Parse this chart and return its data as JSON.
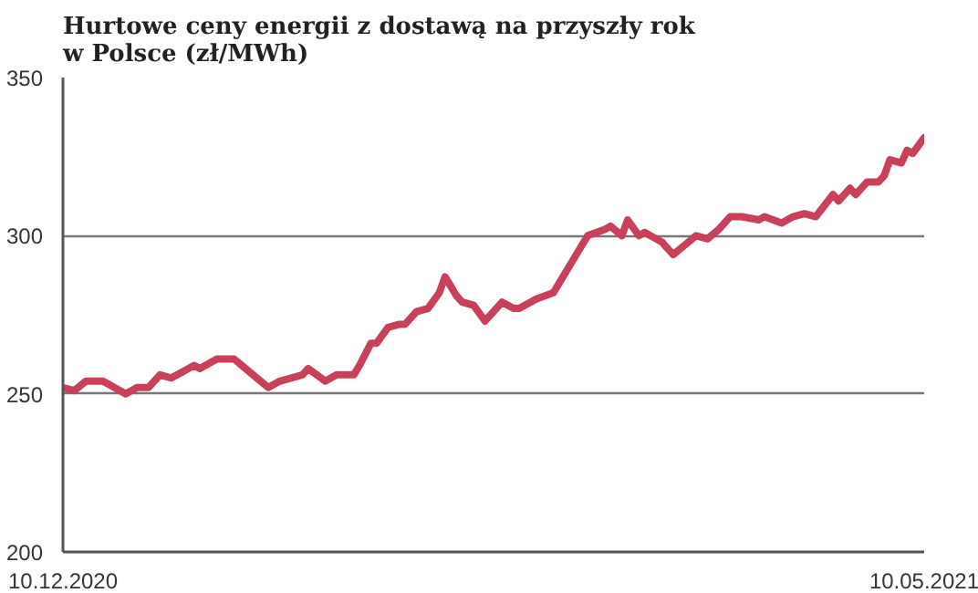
{
  "chart_data": {
    "type": "line",
    "title": "Hurtowe ceny energii z dostawą na przyszły rok\nw Polsce (zł/MWh)",
    "x": [
      "2020-12-10",
      "2020-12-12",
      "2020-12-14",
      "2020-12-17",
      "2020-12-19",
      "2020-12-21",
      "2020-12-23",
      "2020-12-25",
      "2020-12-27",
      "2020-12-29",
      "2020-12-31",
      "2021-01-02",
      "2021-01-03",
      "2021-01-06",
      "2021-01-09",
      "2021-01-11",
      "2021-01-13",
      "2021-01-15",
      "2021-01-17",
      "2021-01-19",
      "2021-01-21",
      "2021-01-22",
      "2021-01-25",
      "2021-01-27",
      "2021-01-30",
      "2021-01-31",
      "2021-02-02",
      "2021-02-03",
      "2021-02-05",
      "2021-02-07",
      "2021-02-08",
      "2021-02-10",
      "2021-02-12",
      "2021-02-14",
      "2021-02-15",
      "2021-02-17",
      "2021-02-18",
      "2021-02-20",
      "2021-02-22",
      "2021-02-23",
      "2021-02-25",
      "2021-02-27",
      "2021-02-28",
      "2021-03-03",
      "2021-03-06",
      "2021-03-07",
      "2021-03-09",
      "2021-03-11",
      "2021-03-12",
      "2021-03-15",
      "2021-03-16",
      "2021-03-18",
      "2021-03-19",
      "2021-03-21",
      "2021-03-22",
      "2021-03-25",
      "2021-03-27",
      "2021-03-29",
      "2021-03-31",
      "2021-04-02",
      "2021-04-04",
      "2021-04-06",
      "2021-04-08",
      "2021-04-11",
      "2021-04-12",
      "2021-04-15",
      "2021-04-17",
      "2021-04-19",
      "2021-04-21",
      "2021-04-24",
      "2021-04-25",
      "2021-04-27",
      "2021-04-28",
      "2021-04-30",
      "2021-05-02",
      "2021-05-03",
      "2021-05-04",
      "2021-05-06",
      "2021-05-07",
      "2021-05-08",
      "2021-05-10"
    ],
    "series": [
      {
        "color": "#c8405a",
        "values": [
          252,
          251,
          254,
          254,
          252,
          250,
          252,
          252,
          256,
          255,
          257,
          259,
          258,
          261,
          261,
          258,
          255,
          252,
          254,
          255,
          256,
          258,
          254,
          256,
          256,
          259,
          266,
          266,
          271,
          272,
          272,
          276,
          277,
          282,
          287,
          281,
          279,
          278,
          273,
          275,
          279,
          277,
          277,
          280,
          282,
          285,
          291,
          297,
          300,
          302,
          303,
          300,
          305,
          300,
          301,
          298,
          294,
          297,
          300,
          299,
          302,
          306,
          306,
          305,
          306,
          304,
          306,
          307,
          306,
          313,
          311,
          315,
          313,
          317,
          317,
          319,
          324,
          323,
          327,
          326,
          331
        ]
      }
    ],
    "xlim": [
      "2020-12-10",
      "2021-05-10"
    ],
    "xticks": [
      {
        "value": "2020-12-10",
        "label": "10.12.2020"
      },
      {
        "value": "2021-05-10",
        "label": "10.05.2021"
      }
    ],
    "ylim": [
      200,
      350
    ],
    "yticks": [
      200,
      250,
      300,
      350
    ],
    "grid": "y",
    "marker": "none",
    "line_style": "solid"
  }
}
